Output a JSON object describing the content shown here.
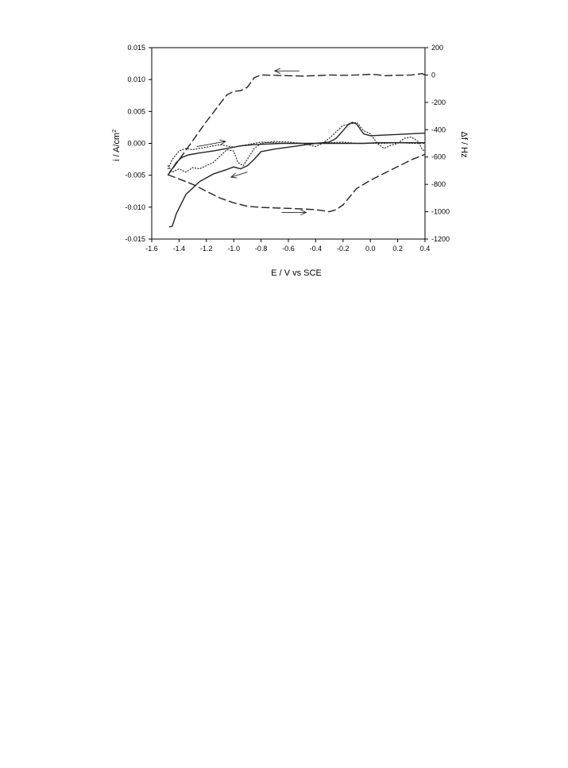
{
  "chart_data": {
    "type": "line",
    "title": "",
    "xlabel": "E / V vs SCE",
    "ylabel_left": "i / A/cm",
    "ylabel_left_superscript": "2",
    "ylabel_right": "Δf / Hz",
    "xlim": [
      -1.6,
      0.4
    ],
    "ylim_left": [
      -0.015,
      0.015
    ],
    "ylim_right": [
      -1200,
      200
    ],
    "x_ticks": [
      -1.6,
      -1.4,
      -1.2,
      -1.0,
      -0.8,
      -0.6,
      -0.4,
      -0.2,
      0.0,
      0.2,
      0.4
    ],
    "x_tick_labels": [
      "-1.6",
      "-1.4",
      "-1.2",
      "-1.0",
      "-0.8",
      "-0.6",
      "-0.4",
      "-0.2",
      "0.0",
      "0.2",
      "0.4"
    ],
    "y_left_ticks": [
      0.015,
      0.01,
      0.005,
      0.0,
      -0.005,
      -0.01,
      -0.015
    ],
    "y_left_tick_labels": [
      "0.015",
      "0.010",
      "0.005",
      "0.000",
      "-0.005",
      "-0.010",
      "-0.015"
    ],
    "y_right_ticks": [
      200,
      0,
      -200,
      -400,
      -600,
      -800,
      -1000,
      -1200
    ],
    "y_right_tick_labels": [
      "200",
      "0",
      "-200",
      "-400",
      "-600",
      "-800",
      "-1000",
      "-1200"
    ],
    "grid": false,
    "legend": "none",
    "series": [
      {
        "axis": "right",
        "style": "dashed",
        "x": [
          -1.48,
          -1.4,
          -1.3,
          -1.2,
          -1.1,
          -1.0,
          -0.9,
          -0.8,
          -0.7,
          -0.6,
          -0.5,
          -0.4,
          -0.35,
          -0.3,
          -0.25,
          -0.2,
          -0.15,
          -0.1,
          -0.05,
          0.0,
          0.1,
          0.2,
          0.3,
          0.4
        ],
        "y": [
          -730,
          -760,
          -800,
          -850,
          -900,
          -935,
          -960,
          -968,
          -972,
          -975,
          -980,
          -985,
          -992,
          -1000,
          -985,
          -950,
          -890,
          -830,
          -800,
          -770,
          -720,
          -670,
          -620,
          -580
        ],
        "annotation": "arrow-right"
      },
      {
        "axis": "right",
        "style": "dashed",
        "x": [
          0.4,
          0.38,
          0.3,
          0.2,
          0.1,
          0.05,
          0.0,
          -0.1,
          -0.2,
          -0.3,
          -0.4,
          -0.5,
          -0.6,
          -0.7,
          -0.8,
          -0.85,
          -0.9,
          -0.95,
          -1.0,
          -1.05,
          -1.1,
          -1.2,
          -1.3,
          -1.4,
          -1.48
        ],
        "y": [
          0,
          10,
          0,
          -2,
          -5,
          2,
          5,
          0,
          -2,
          0,
          -5,
          -8,
          -5,
          -2,
          0,
          -20,
          -90,
          -115,
          -120,
          -145,
          -210,
          -340,
          -480,
          -620,
          -730
        ],
        "annotation": "arrow-left"
      },
      {
        "axis": "left",
        "style": "solid",
        "x": [
          -1.47,
          -1.45,
          -1.42,
          -1.38,
          -1.33,
          -1.25,
          -1.15,
          -1.05,
          -0.95,
          -0.85,
          -0.75,
          -0.65,
          -0.55,
          -0.45,
          -0.35,
          -0.25,
          -0.15,
          -0.05,
          0.05,
          0.15,
          0.25,
          0.35,
          0.4
        ],
        "y": [
          -0.0045,
          -0.004,
          -0.003,
          -0.0022,
          -0.0018,
          -0.0015,
          -0.0012,
          -0.0008,
          -0.0004,
          -0.0002,
          -0.0001,
          0.0,
          0.0,
          0.0,
          0.0,
          0.0,
          0.0,
          0.0,
          0.0001,
          0.0001,
          0.0001,
          0.0001,
          0.0001
        ],
        "annotation": "arrow-right"
      },
      {
        "axis": "left",
        "style": "solid",
        "x": [
          0.4,
          0.3,
          0.2,
          0.1,
          0.0,
          -0.05,
          -0.1,
          -0.13,
          -0.16,
          -0.2,
          -0.25,
          -0.3,
          -0.35,
          -0.4,
          -0.5,
          -0.6,
          -0.7,
          -0.8,
          -0.85,
          -0.9,
          -0.95,
          -1.0,
          -1.05,
          -1.15,
          -1.25,
          -1.35,
          -1.42,
          -1.45,
          -1.47
        ],
        "y": [
          0.0016,
          0.0015,
          0.0014,
          0.0013,
          0.0012,
          0.0015,
          0.003,
          0.0033,
          0.003,
          0.002,
          0.0008,
          0.0002,
          0.0001,
          0.0,
          -0.0003,
          -0.0006,
          -0.0009,
          -0.0013,
          -0.0025,
          -0.0035,
          -0.004,
          -0.0037,
          -0.0041,
          -0.0048,
          -0.006,
          -0.008,
          -0.011,
          -0.013,
          -0.0131
        ],
        "annotation": "arrow-left"
      },
      {
        "axis": "left",
        "style": "dotted",
        "x": [
          -1.48,
          -1.45,
          -1.4,
          -1.35,
          -1.3,
          -1.25,
          -1.2,
          -1.15,
          -1.1,
          -1.05,
          -1.0,
          -0.97,
          -0.93,
          -0.9,
          -0.85,
          -0.8,
          -0.7,
          -0.6,
          -0.5,
          -0.4,
          -0.35,
          -0.3,
          -0.25,
          -0.2,
          -0.15,
          -0.1,
          -0.05,
          0.0,
          0.05,
          0.1,
          0.15,
          0.2,
          0.25,
          0.3,
          0.35,
          0.38,
          0.4
        ],
        "y": [
          -0.0035,
          -0.0045,
          -0.004,
          -0.0045,
          -0.0038,
          -0.004,
          -0.0035,
          -0.003,
          -0.002,
          -0.001,
          -0.0012,
          -0.003,
          -0.0035,
          -0.0025,
          -0.0008,
          0.0,
          0.0003,
          0.0002,
          0.0,
          -0.0005,
          0.0,
          0.0008,
          0.0018,
          0.0028,
          0.003,
          0.0033,
          0.002,
          0.0015,
          0.0,
          -0.0008,
          -0.0003,
          0.0,
          0.0008,
          0.001,
          0.0003,
          -0.001,
          -0.0012
        ],
        "annotation": ""
      },
      {
        "axis": "left",
        "style": "dotted",
        "x": [
          -1.48,
          -1.45,
          -1.4,
          -1.35,
          -1.3,
          -1.2,
          -1.1,
          -1.0,
          -0.9,
          -0.8,
          -0.7,
          -0.6,
          -0.5,
          -0.4,
          -0.3,
          -0.2,
          -0.1,
          0.0,
          0.1,
          0.2,
          0.3,
          0.4
        ],
        "y": [
          -0.004,
          -0.0025,
          -0.0012,
          -0.0008,
          -0.001,
          -0.0006,
          -0.0002,
          -0.0006,
          -0.0002,
          0.0002,
          0.0001,
          0.0,
          0.0,
          0.0,
          0.0001,
          0.0002,
          0.0,
          0.0,
          0.0,
          0.0001,
          0.0,
          0.0
        ],
        "annotation": ""
      }
    ],
    "arrows": [
      {
        "axis": "right",
        "x0": -0.65,
        "x1": -0.47,
        "y0": -1005,
        "y1": -1005
      },
      {
        "axis": "right",
        "x0": -0.52,
        "x1": -0.7,
        "y0": 30,
        "y1": 30
      },
      {
        "axis": "left",
        "x0": -1.27,
        "x1": -1.06,
        "y0": -0.0005,
        "y1": 0.0003
      },
      {
        "axis": "left",
        "x0": -0.9,
        "x1": -1.02,
        "y0": -0.0045,
        "y1": -0.0053
      }
    ],
    "colors": {
      "line": "#222222",
      "axes": "#000000",
      "background": "#ffffff"
    }
  }
}
